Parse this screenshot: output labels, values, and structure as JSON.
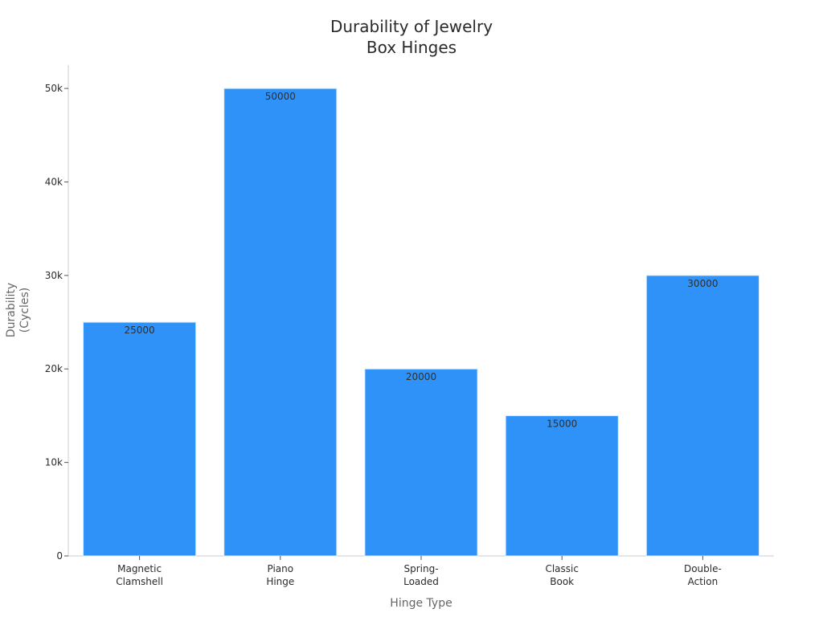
{
  "chart_data": {
    "type": "bar",
    "title": "Durability of Jewelry\nBox Hinges",
    "xlabel": "Hinge Type",
    "ylabel": "Durability\n(Cycles)",
    "categories": [
      "Magnetic\nClamshell",
      "Piano\nHinge",
      "Spring-\nLoaded",
      "Classic\nBook",
      "Double-\nAction"
    ],
    "values": [
      25000,
      50000,
      20000,
      15000,
      30000
    ],
    "data_labels": [
      "25000",
      "50000",
      "20000",
      "15000",
      "30000"
    ],
    "ylim": [
      0,
      52500
    ],
    "y_ticks": [
      0,
      10000,
      20000,
      30000,
      40000,
      50000
    ],
    "y_tick_labels": [
      "0",
      "10k",
      "20k",
      "30k",
      "40k",
      "50k"
    ],
    "grid": false,
    "legend": "none",
    "colors": {
      "bar": "#2f92f8",
      "bar_edge": "#d9ecff",
      "axis": "#cccccc",
      "text": "#2a2a2a",
      "axis_title": "#666666"
    }
  }
}
